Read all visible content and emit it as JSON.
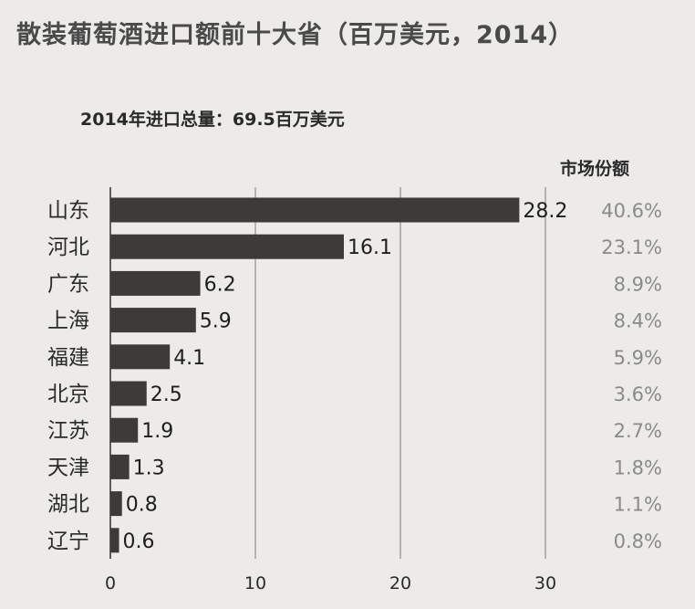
{
  "title": "散装葡萄酒进口额前十大省（百万美元，2014）",
  "subtitle": "2014年进口总量：69.5百万美元",
  "share_header": "市场份额",
  "chart_data": {
    "type": "bar",
    "orientation": "horizontal",
    "title": "散装葡萄酒进口额前十大省（百万美元，2014）",
    "subtitle": "2014年进口总量：69.5百万美元",
    "categories": [
      "山东",
      "河北",
      "广东",
      "上海",
      "福建",
      "北京",
      "江苏",
      "天津",
      "湖北",
      "辽宁"
    ],
    "values": [
      28.2,
      16.1,
      6.2,
      5.9,
      4.1,
      2.5,
      1.9,
      1.3,
      0.8,
      0.6
    ],
    "value_labels": [
      "28.2",
      "16.1",
      "6.2",
      "5.9",
      "4.1",
      "2.5",
      "1.9",
      "1.3",
      "0.8",
      "0.6"
    ],
    "share_labels": [
      "40.6%",
      "23.1%",
      "8.9%",
      "8.4%",
      "5.9%",
      "3.6%",
      "2.7%",
      "1.8%",
      "1.1%",
      "0.8%"
    ],
    "xlim": [
      0,
      30
    ],
    "xticks": [
      "0",
      "10",
      "20",
      "30"
    ],
    "grid": true,
    "bar_color": "#3d3a39",
    "share_color": "#8a8a8a"
  }
}
